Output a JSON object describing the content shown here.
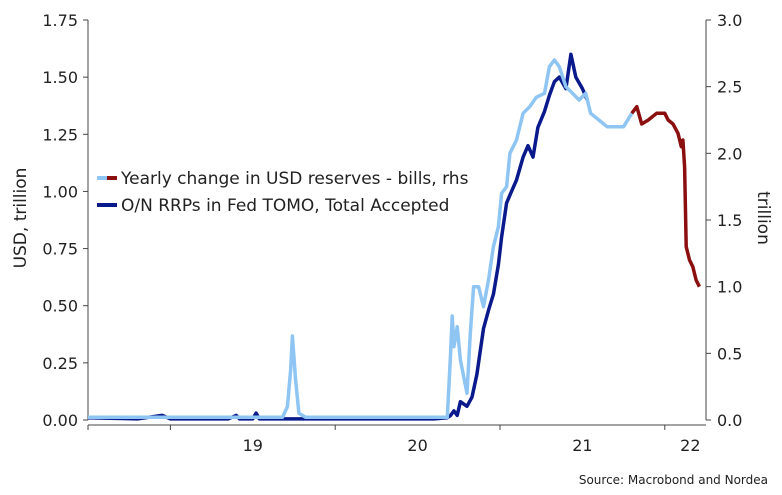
{
  "chart_data": {
    "type": "line",
    "source": "Source: Macrobond and Nordea",
    "ylabel_left": "USD, trillion",
    "ylabel_right": "trillion",
    "ylim_left": [
      0,
      1.75
    ],
    "ylim_right": [
      0,
      3.0
    ],
    "yticks_left": [
      "0.00",
      "0.25",
      "0.50",
      "0.75",
      "1.00",
      "1.25",
      "1.50",
      "1.75"
    ],
    "yticks_right": [
      "0.0",
      "0.5",
      "1.0",
      "1.5",
      "2.0",
      "2.5",
      "3.0"
    ],
    "xticks": [
      "19",
      "20",
      "21",
      "22"
    ],
    "xlim": [
      2018.5,
      2022.25
    ],
    "legend_placement": "center-left",
    "series": [
      {
        "name": "Yearly change in USD reserves - bills, rhs",
        "axis": "right",
        "colors": [
          "#8ec5f2",
          "#8b0f0f"
        ],
        "split_x": 2021.8,
        "points": [
          [
            2018.5,
            0.02
          ],
          [
            2019.2,
            0.02
          ],
          [
            2019.68,
            0.02
          ],
          [
            2019.71,
            0.1
          ],
          [
            2019.73,
            0.38
          ],
          [
            2019.74,
            0.63
          ],
          [
            2019.76,
            0.3
          ],
          [
            2019.78,
            0.05
          ],
          [
            2019.82,
            0.02
          ],
          [
            2020.6,
            0.02
          ],
          [
            2020.68,
            0.02
          ],
          [
            2020.7,
            0.5
          ],
          [
            2020.71,
            0.78
          ],
          [
            2020.72,
            0.55
          ],
          [
            2020.74,
            0.7
          ],
          [
            2020.76,
            0.45
          ],
          [
            2020.8,
            0.2
          ],
          [
            2020.82,
            0.65
          ],
          [
            2020.84,
            1.0
          ],
          [
            2020.87,
            1.0
          ],
          [
            2020.9,
            0.85
          ],
          [
            2020.93,
            1.05
          ],
          [
            2020.96,
            1.3
          ],
          [
            2020.99,
            1.45
          ],
          [
            2021.01,
            1.7
          ],
          [
            2021.04,
            1.75
          ],
          [
            2021.06,
            2.0
          ],
          [
            2021.1,
            2.1
          ],
          [
            2021.14,
            2.3
          ],
          [
            2021.18,
            2.35
          ],
          [
            2021.22,
            2.42
          ],
          [
            2021.27,
            2.45
          ],
          [
            2021.3,
            2.65
          ],
          [
            2021.33,
            2.7
          ],
          [
            2021.36,
            2.65
          ],
          [
            2021.4,
            2.5
          ],
          [
            2021.44,
            2.45
          ],
          [
            2021.48,
            2.4
          ],
          [
            2021.52,
            2.45
          ],
          [
            2021.55,
            2.3
          ],
          [
            2021.6,
            2.25
          ],
          [
            2021.65,
            2.2
          ],
          [
            2021.7,
            2.2
          ],
          [
            2021.75,
            2.2
          ],
          [
            2021.8,
            2.3
          ],
          [
            2021.83,
            2.35
          ],
          [
            2021.86,
            2.22
          ],
          [
            2021.9,
            2.25
          ],
          [
            2021.95,
            2.3
          ],
          [
            2022.0,
            2.3
          ],
          [
            2022.02,
            2.25
          ],
          [
            2022.05,
            2.22
          ],
          [
            2022.08,
            2.15
          ],
          [
            2022.1,
            2.05
          ],
          [
            2022.11,
            2.1
          ],
          [
            2022.12,
            1.9
          ],
          [
            2022.13,
            1.3
          ],
          [
            2022.15,
            1.2
          ],
          [
            2022.17,
            1.15
          ],
          [
            2022.19,
            1.05
          ],
          [
            2022.21,
            1.0
          ]
        ]
      },
      {
        "name": "O/N RRPs in Fed TOMO, Total Accepted",
        "axis": "left",
        "color": "#0a1a8c",
        "points": [
          [
            2018.5,
            0.01
          ],
          [
            2018.8,
            0.005
          ],
          [
            2018.95,
            0.02
          ],
          [
            2019.0,
            0.005
          ],
          [
            2019.35,
            0.005
          ],
          [
            2019.4,
            0.02
          ],
          [
            2019.42,
            0.005
          ],
          [
            2019.5,
            0.005
          ],
          [
            2019.52,
            0.03
          ],
          [
            2019.54,
            0.005
          ],
          [
            2020.6,
            0.005
          ],
          [
            2020.68,
            0.01
          ],
          [
            2020.7,
            0.02
          ],
          [
            2020.72,
            0.04
          ],
          [
            2020.74,
            0.02
          ],
          [
            2020.76,
            0.08
          ],
          [
            2020.8,
            0.06
          ],
          [
            2020.83,
            0.1
          ],
          [
            2020.86,
            0.2
          ],
          [
            2020.88,
            0.3
          ],
          [
            2020.9,
            0.4
          ],
          [
            2020.93,
            0.48
          ],
          [
            2020.96,
            0.55
          ],
          [
            2020.99,
            0.68
          ],
          [
            2021.01,
            0.8
          ],
          [
            2021.04,
            0.95
          ],
          [
            2021.07,
            1.0
          ],
          [
            2021.1,
            1.05
          ],
          [
            2021.14,
            1.15
          ],
          [
            2021.17,
            1.2
          ],
          [
            2021.2,
            1.15
          ],
          [
            2021.23,
            1.28
          ],
          [
            2021.27,
            1.35
          ],
          [
            2021.3,
            1.42
          ],
          [
            2021.33,
            1.48
          ],
          [
            2021.36,
            1.5
          ],
          [
            2021.4,
            1.45
          ],
          [
            2021.43,
            1.6
          ],
          [
            2021.46,
            1.5
          ],
          [
            2021.5,
            1.45
          ],
          [
            2021.53,
            1.4
          ]
        ]
      }
    ]
  }
}
